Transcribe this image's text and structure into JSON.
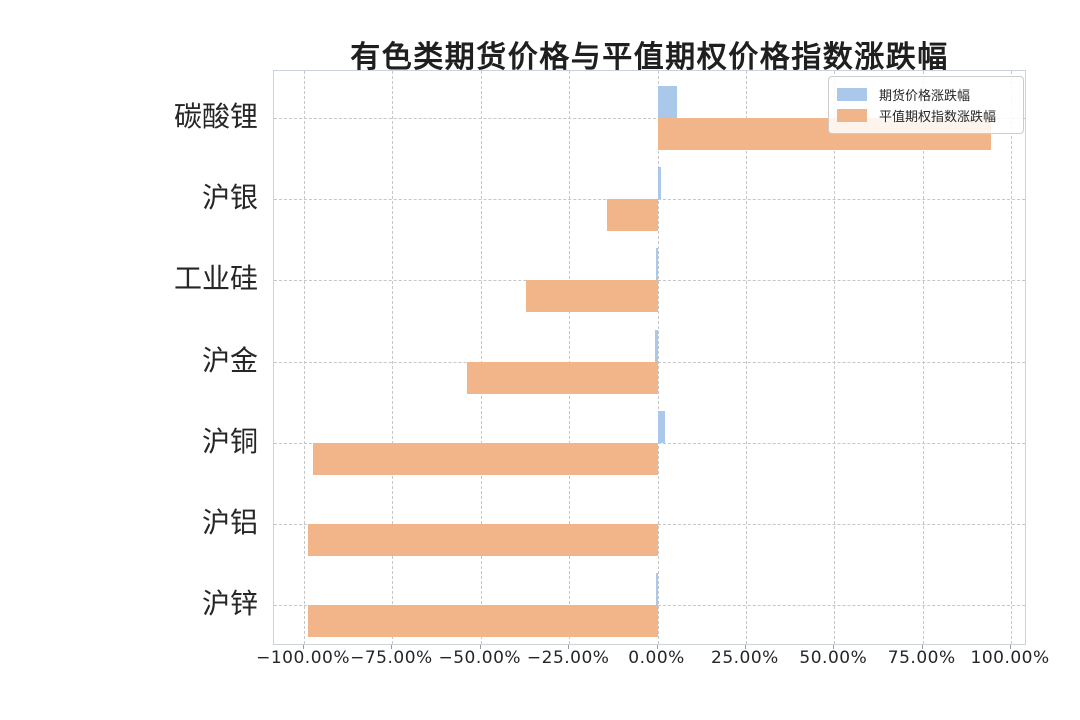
{
  "title": "有色类期货价格与平值期权价格指数涨跌幅",
  "colors": {
    "futures_bar": "#aac8ea",
    "option_bar": "#f2b489",
    "grid": "#c7c7c7",
    "plot_border": "#ccd3da",
    "text": "#262626"
  },
  "legend": {
    "position": "upper-right",
    "items": [
      {
        "label": "期货价格涨跌幅",
        "color": "#aac8ea"
      },
      {
        "label": "平值期权指数涨跌幅",
        "color": "#f2b489"
      }
    ]
  },
  "chart_data": {
    "type": "bar",
    "orientation": "horizontal",
    "title": "有色类期货价格与平值期权价格指数涨跌幅",
    "categories": [
      "碳酸锂",
      "沪银",
      "工业硅",
      "沪金",
      "沪铜",
      "沪铝",
      "沪锌"
    ],
    "series": [
      {
        "name": "期货价格涨跌幅",
        "color": "#aac8ea",
        "unit": "%",
        "values": [
          5.6,
          1.0,
          -0.5,
          -0.8,
          2.0,
          0.0,
          -0.5
        ]
      },
      {
        "name": "平值期权指数涨跌幅",
        "color": "#f2b489",
        "unit": "%",
        "values": [
          94.4,
          -14.3,
          -37.3,
          -54.0,
          -97.5,
          -98.8,
          -98.9
        ]
      }
    ],
    "x_tick_labels": [
      "−100.00%",
      "−75.00%",
      "−50.00%",
      "−25.00%",
      "0.00%",
      "25.00%",
      "50.00%",
      "75.00%",
      "100.00%"
    ],
    "x_tick_values": [
      -100,
      -75,
      -50,
      -25,
      0,
      25,
      50,
      75,
      100
    ],
    "xlim": [
      -108.5,
      104.5
    ],
    "grid": "dashed-both-axes",
    "legend_position": "upper right"
  }
}
